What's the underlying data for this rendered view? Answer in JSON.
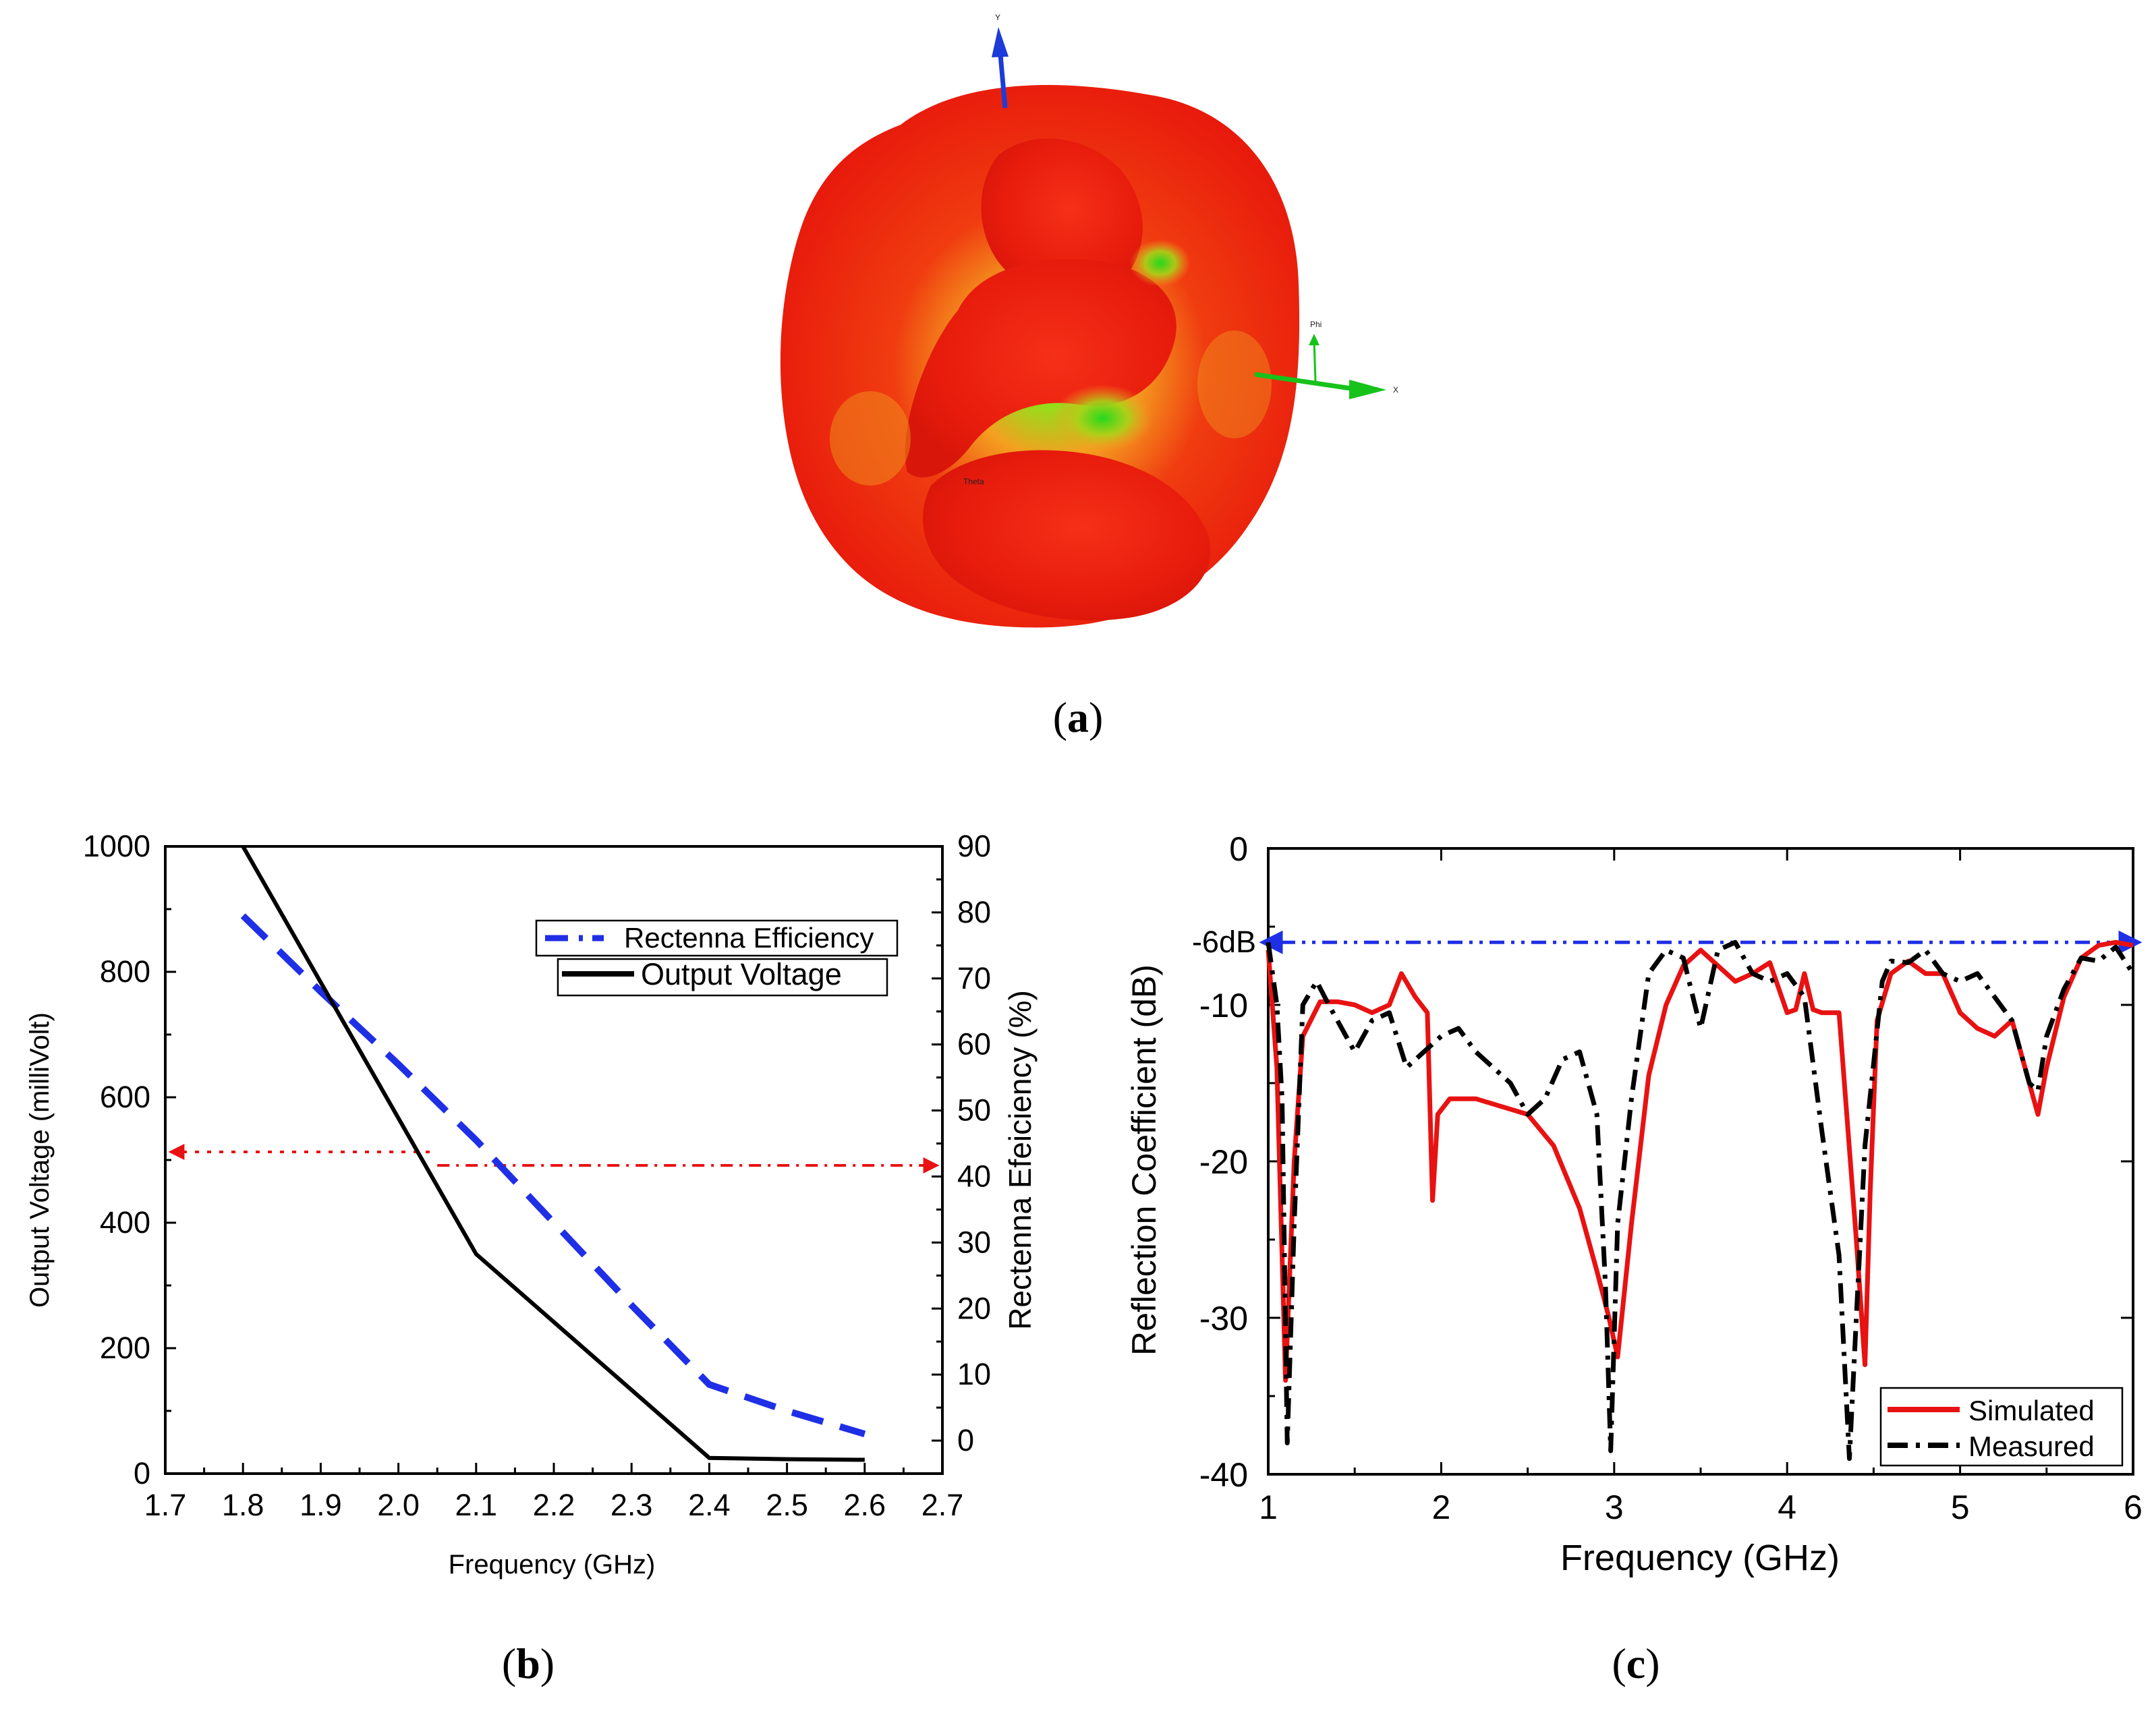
{
  "panels": {
    "a": {
      "label": "a",
      "axis_labels": [
        "Y",
        "X",
        "Phi",
        "Theta"
      ]
    },
    "b": {
      "label": "b"
    },
    "c": {
      "label": "c"
    }
  },
  "colors": {
    "pattern_outer": "#ee1c0f",
    "pattern_mid": "#f4a020",
    "pattern_core": "#2bd81a",
    "axis_y": "#1d3bd8",
    "axis_x": "#17c21a",
    "blue_dash": "#1f2fe6",
    "red_ref": "#e81212",
    "black": "#000000"
  },
  "chart_data": [
    {
      "panel": "b",
      "type": "line",
      "xlabel": "Frequency (GHz)",
      "ylabel": "Output Voltage (milliVolt)",
      "y2label": "Rectenna Efeiciency (%)",
      "xlim": [
        1.7,
        2.7
      ],
      "ylim": [
        0,
        1000
      ],
      "y2lim": [
        -5,
        90
      ],
      "x_ticks": [
        "1.7",
        "1.8",
        "1.9",
        "2.0",
        "2.1",
        "2.2",
        "2.3",
        "2.4",
        "2.5",
        "2.6",
        "2.7"
      ],
      "y_ticks": [
        "0",
        "200",
        "400",
        "600",
        "800",
        "1000"
      ],
      "y2_ticks": [
        "0",
        "10",
        "20",
        "30",
        "40",
        "50",
        "60",
        "70",
        "80",
        "90"
      ],
      "legend": [
        {
          "name": "Rectenna Efficiency",
          "style": "dash-dot",
          "color": "#1f2fe6"
        },
        {
          "name": "Output Voltage",
          "style": "solid",
          "color": "#000000"
        }
      ],
      "series": [
        {
          "name": "Rectenna Efficiency",
          "axis": "right",
          "x": [
            1.8,
            1.9,
            2.0,
            2.1,
            2.2,
            2.3,
            2.4,
            2.5,
            2.6
          ],
          "values": [
            79.5,
            68,
            57,
            45.5,
            33,
            20.5,
            8.5,
            4.5,
            1
          ]
        },
        {
          "name": "Output Voltage",
          "axis": "left",
          "x": [
            1.8,
            2.1,
            2.4,
            2.5,
            2.6
          ],
          "values": [
            1000,
            350,
            25,
            23,
            22
          ]
        }
      ],
      "reference_arrow": {
        "y": 500,
        "x_from": 1.7,
        "x_to": 2.7,
        "color": "#e81212"
      }
    },
    {
      "panel": "c",
      "type": "line",
      "xlabel": "Frequency (GHz)",
      "ylabel": "Reflection Coefficient (dB)",
      "xlim": [
        1,
        6
      ],
      "ylim": [
        -40,
        0
      ],
      "x_ticks": [
        "1",
        "2",
        "3",
        "4",
        "5",
        "6"
      ],
      "y_ticks": [
        "0",
        "-10",
        "-20",
        "-30",
        "-40"
      ],
      "annotation": "-6dB",
      "reference_arrow": {
        "y": -6,
        "x_from": 1,
        "x_to": 6,
        "color": "#1f2fe6"
      },
      "legend": [
        {
          "name": "Simulated",
          "style": "solid",
          "color": "#e81212"
        },
        {
          "name": "Measured",
          "style": "dash-dot",
          "color": "#000000"
        }
      ],
      "series": [
        {
          "name": "Simulated",
          "x": [
            1.0,
            1.05,
            1.1,
            1.15,
            1.2,
            1.3,
            1.4,
            1.5,
            1.6,
            1.7,
            1.77,
            1.85,
            1.92,
            1.95,
            1.98,
            2.05,
            2.2,
            2.35,
            2.5,
            2.65,
            2.8,
            2.9,
            2.97,
            3.02,
            3.1,
            3.2,
            3.3,
            3.4,
            3.5,
            3.6,
            3.7,
            3.8,
            3.9,
            4.0,
            4.05,
            4.1,
            4.15,
            4.2,
            4.3,
            4.4,
            4.45,
            4.48,
            4.52,
            4.6,
            4.7,
            4.8,
            4.9,
            5.0,
            5.1,
            5.2,
            5.3,
            5.4,
            5.45,
            5.5,
            5.6,
            5.7,
            5.8,
            5.9,
            6.0
          ],
          "values": [
            -6.5,
            -14,
            -34,
            -20,
            -12,
            -9.8,
            -9.8,
            -10,
            -10.5,
            -10,
            -8,
            -9.5,
            -10.5,
            -22.5,
            -17,
            -16,
            -16,
            -16.5,
            -17,
            -19,
            -23,
            -27,
            -30,
            -32.5,
            -24,
            -14.5,
            -10,
            -7.5,
            -6.5,
            -7.5,
            -8.5,
            -8,
            -7.3,
            -10.5,
            -10.3,
            -8,
            -10.3,
            -10.5,
            -10.5,
            -25,
            -33,
            -22,
            -11,
            -8,
            -7.2,
            -8,
            -8,
            -10.5,
            -11.5,
            -12,
            -11,
            -15,
            -17,
            -14,
            -9.5,
            -7,
            -6.2,
            -6,
            -6.2
          ]
        },
        {
          "name": "Measured",
          "x": [
            1.0,
            1.05,
            1.08,
            1.11,
            1.15,
            1.2,
            1.28,
            1.35,
            1.4,
            1.5,
            1.6,
            1.7,
            1.8,
            1.9,
            2.0,
            2.1,
            2.2,
            2.3,
            2.4,
            2.5,
            2.6,
            2.7,
            2.8,
            2.9,
            2.95,
            2.98,
            3.02,
            3.1,
            3.2,
            3.3,
            3.4,
            3.5,
            3.6,
            3.7,
            3.8,
            3.9,
            4.0,
            4.1,
            4.2,
            4.3,
            4.36,
            4.4,
            4.45,
            4.55,
            4.6,
            4.7,
            4.8,
            4.9,
            5.0,
            5.1,
            5.2,
            5.3,
            5.4,
            5.45,
            5.5,
            5.6,
            5.7,
            5.8,
            5.9,
            6.0
          ],
          "values": [
            -6,
            -10,
            -16,
            -38,
            -24,
            -10,
            -8.5,
            -10,
            -11,
            -13,
            -11,
            -10.5,
            -14,
            -13,
            -12,
            -11.5,
            -13,
            -14,
            -15,
            -17,
            -16,
            -13.5,
            -13,
            -17,
            -28,
            -38.5,
            -24,
            -16,
            -8,
            -6.5,
            -7,
            -11.5,
            -6.5,
            -6,
            -8,
            -8.5,
            -8,
            -9.5,
            -18,
            -26,
            -39,
            -30,
            -19,
            -8.5,
            -7.2,
            -7.3,
            -6.5,
            -8,
            -8.5,
            -8,
            -9.5,
            -11,
            -15,
            -15.5,
            -12,
            -9,
            -7,
            -7.2,
            -6.3,
            -8
          ]
        }
      ]
    }
  ]
}
